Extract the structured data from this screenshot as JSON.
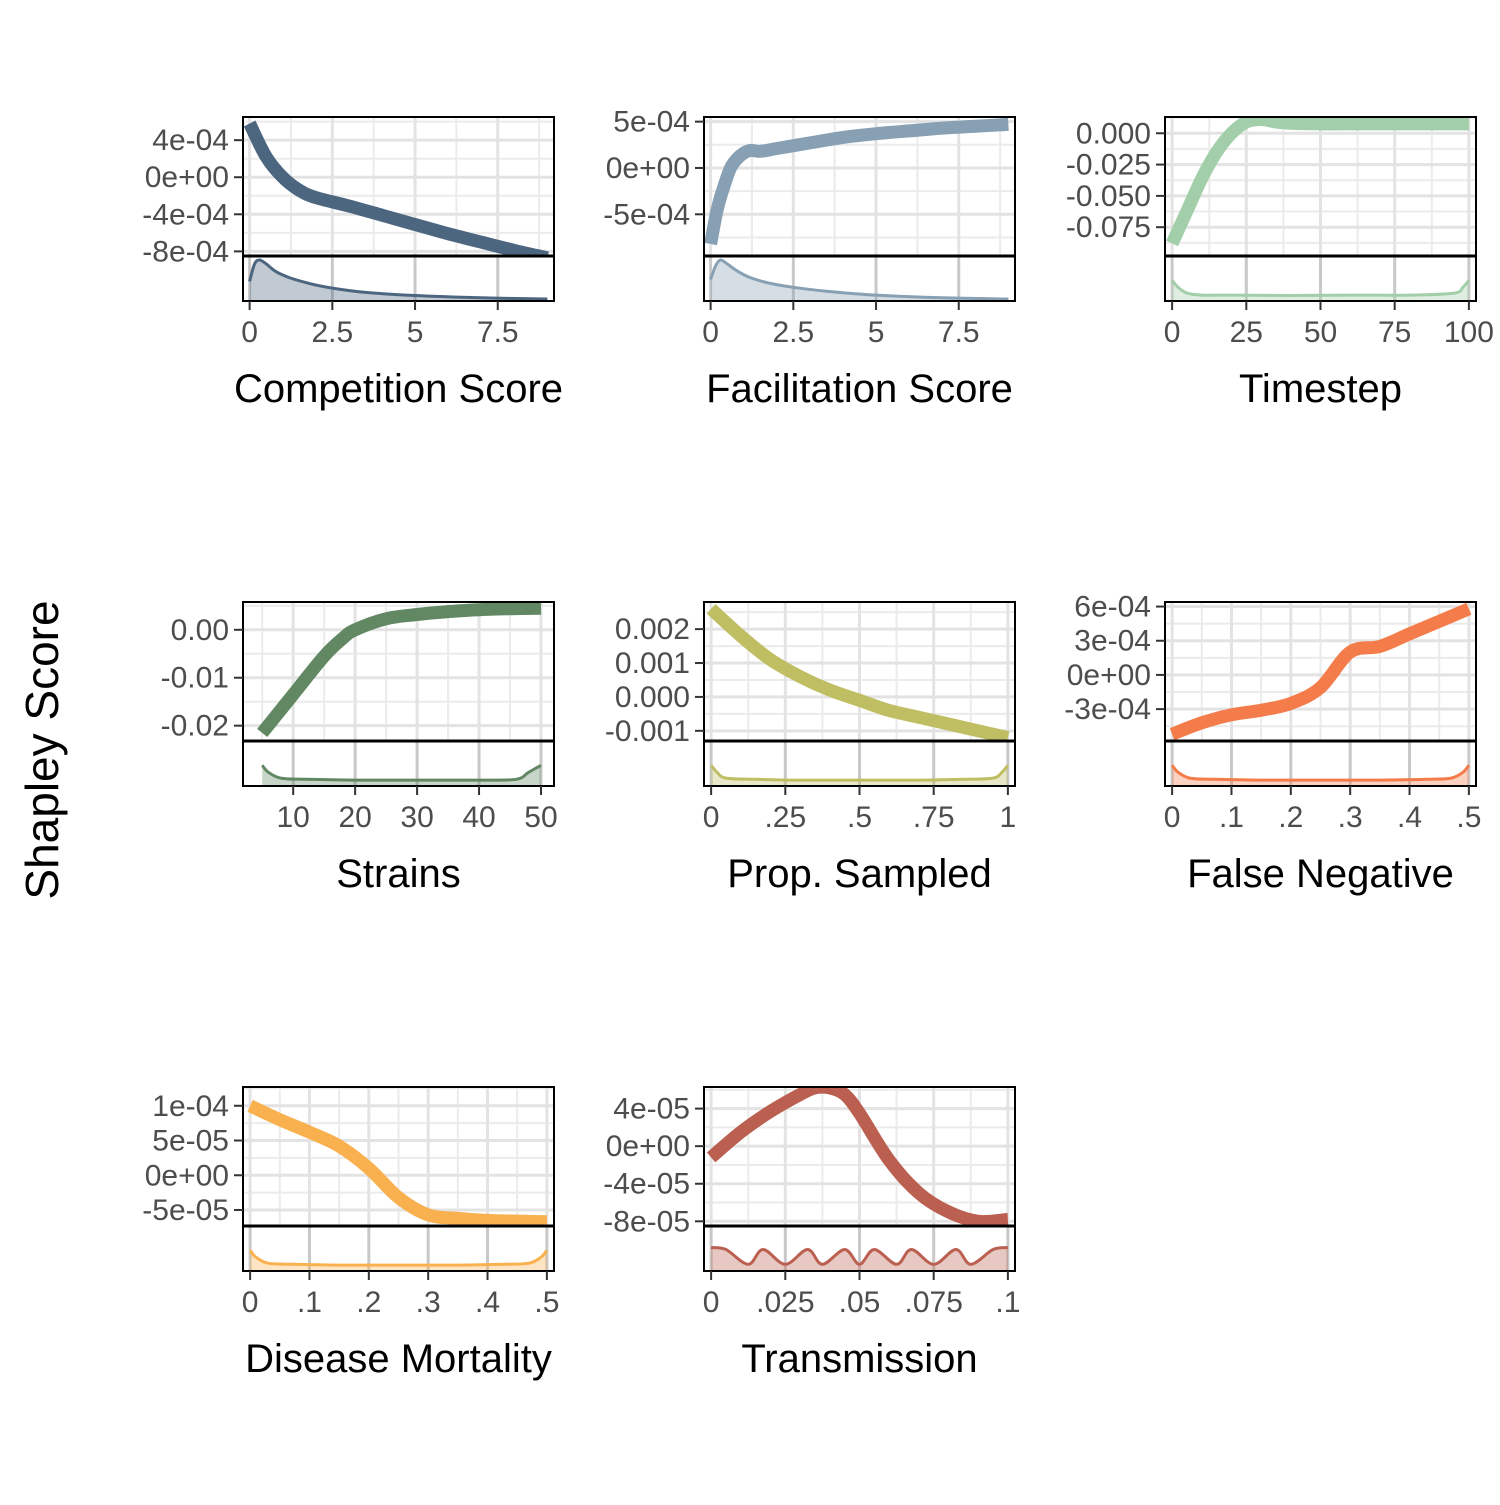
{
  "ylabel": "Shapley Score",
  "chart_data": [
    {
      "type": "line",
      "xlabel": "Competition Score",
      "xlim": [
        -0.2,
        9.2
      ],
      "xticks": [
        0,
        2.5,
        5,
        7.5
      ],
      "xtick_labels": [
        "0",
        "2.5",
        "5",
        "7.5"
      ],
      "ylim": [
        -0.00085,
        0.00065
      ],
      "yticks": [
        0.0004,
        0,
        -0.0004,
        -0.0008
      ],
      "ytick_labels": [
        "4e-04",
        "0e+00",
        "-4e-04",
        "-8e-04"
      ],
      "color": "#4d6680",
      "line_width": 13,
      "series": [
        {
          "x": [
            0,
            0.5,
            1,
            1.5,
            2,
            3,
            4,
            5,
            6,
            7,
            8,
            9
          ],
          "y": [
            0.00058,
            0.00022,
            0.0,
            -0.00014,
            -0.00022,
            -0.00031,
            -0.00041,
            -0.00051,
            -0.00061,
            -0.0007,
            -0.00079,
            -0.00087
          ]
        }
      ],
      "density": {
        "x": [
          0,
          0.15,
          0.3,
          0.5,
          0.8,
          1.2,
          1.8,
          2.5,
          3.5,
          5,
          7,
          9
        ],
        "y": [
          0.45,
          0.9,
          1.0,
          0.9,
          0.7,
          0.55,
          0.4,
          0.28,
          0.17,
          0.09,
          0.03,
          0.0
        ]
      }
    },
    {
      "type": "line",
      "xlabel": "Facilitation Score",
      "xlim": [
        -0.2,
        9.2
      ],
      "xticks": [
        0,
        2.5,
        5,
        7.5
      ],
      "xtick_labels": [
        "0",
        "2.5",
        "5",
        "7.5"
      ],
      "ylim": [
        -0.00095,
        0.00055
      ],
      "yticks": [
        0.0005,
        0,
        -0.0005
      ],
      "ytick_labels": [
        "5e-04",
        "0e+00",
        "-5e-04"
      ],
      "color": "#87a0b3",
      "line_width": 13,
      "series": [
        {
          "x": [
            0,
            0.2,
            0.4,
            0.6,
            0.8,
            1.0,
            1.2,
            1.5,
            2,
            3,
            4,
            5,
            6,
            7,
            8,
            9
          ],
          "y": [
            -0.00082,
            -0.00045,
            -0.0002,
            0.0,
            0.0001,
            0.00016,
            0.00019,
            0.00018,
            0.00021,
            0.00027,
            0.00033,
            0.00037,
            0.0004,
            0.00043,
            0.00045,
            0.00047
          ]
        }
      ],
      "density": {
        "x": [
          0,
          0.15,
          0.3,
          0.5,
          0.8,
          1.2,
          1.8,
          2.5,
          3.5,
          5,
          7,
          9
        ],
        "y": [
          0.5,
          0.85,
          1.0,
          0.9,
          0.72,
          0.55,
          0.4,
          0.3,
          0.2,
          0.1,
          0.03,
          0.0
        ]
      }
    },
    {
      "type": "line",
      "xlabel": "Timestep",
      "xlim": [
        -2.4,
        102.4
      ],
      "xticks": [
        0,
        25,
        50,
        75,
        100
      ],
      "xtick_labels": [
        "0",
        "25",
        "50",
        "75",
        "100"
      ],
      "ylim": [
        -0.098,
        0.013
      ],
      "yticks": [
        0.0,
        -0.025,
        -0.05,
        -0.075
      ],
      "ytick_labels": [
        "0.000",
        "-0.025",
        "-0.050",
        "-0.075"
      ],
      "color": "#a3ceaa",
      "line_width": 13,
      "series": [
        {
          "x": [
            0,
            5,
            10,
            15,
            20,
            25,
            30,
            35,
            40,
            50,
            60,
            70,
            80,
            90,
            100
          ],
          "y": [
            -0.088,
            -0.062,
            -0.036,
            -0.015,
            0.0,
            0.009,
            0.011,
            0.009,
            0.008,
            0.0075,
            0.0075,
            0.0075,
            0.0075,
            0.0075,
            0.0075
          ]
        }
      ],
      "density": {
        "x": [
          0,
          2,
          5,
          10,
          20,
          40,
          60,
          80,
          95,
          98,
          100
        ],
        "y": [
          0.48,
          0.3,
          0.15,
          0.1,
          0.1,
          0.09,
          0.1,
          0.1,
          0.15,
          0.3,
          0.48
        ]
      }
    },
    {
      "type": "line",
      "xlabel": "Strains",
      "xlim": [
        1.9,
        52.1
      ],
      "xticks": [
        10,
        20,
        30,
        40,
        50
      ],
      "xtick_labels": [
        "10",
        "20",
        "30",
        "40",
        "50"
      ],
      "ylim": [
        -0.0232,
        0.0058
      ],
      "yticks": [
        0.0,
        -0.01,
        -0.02
      ],
      "ytick_labels": [
        "0.00",
        "-0.01",
        "-0.02"
      ],
      "color": "#618863",
      "line_width": 13,
      "series": [
        {
          "x": [
            5,
            10,
            15,
            18,
            20,
            25,
            30,
            35,
            40,
            45,
            50
          ],
          "y": [
            -0.0215,
            -0.0135,
            -0.0055,
            -0.0018,
            0.0,
            0.0023,
            0.0032,
            0.0038,
            0.0042,
            0.0044,
            0.0045
          ]
        }
      ],
      "density": {
        "x": [
          5,
          6,
          8,
          12,
          20,
          30,
          40,
          46,
          48,
          50
        ],
        "y": [
          0.48,
          0.3,
          0.15,
          0.12,
          0.1,
          0.1,
          0.1,
          0.12,
          0.3,
          0.48
        ]
      }
    },
    {
      "type": "line",
      "xlabel": "Prop. Sampled",
      "xlim": [
        -0.024,
        1.024
      ],
      "xticks": [
        0,
        0.25,
        0.5,
        0.75,
        1
      ],
      "xtick_labels": [
        "0",
        ".25",
        ".5",
        ".75",
        "1"
      ],
      "ylim": [
        -0.0013,
        0.0028
      ],
      "yticks": [
        0.002,
        0.001,
        0.0,
        -0.001
      ],
      "ytick_labels": [
        "0.002",
        "0.001",
        "0.000",
        "-0.001"
      ],
      "color": "#c0be63",
      "line_width": 13,
      "series": [
        {
          "x": [
            0,
            0.1,
            0.2,
            0.3,
            0.4,
            0.5,
            0.6,
            0.7,
            0.8,
            0.9,
            1.0
          ],
          "y": [
            0.0026,
            0.0018,
            0.0011,
            0.0006,
            0.0002,
            -0.0001,
            -0.0004,
            -0.0006,
            -0.0008,
            -0.001,
            -0.0012
          ]
        }
      ],
      "density": {
        "x": [
          0,
          0.02,
          0.05,
          0.15,
          0.3,
          0.5,
          0.7,
          0.85,
          0.95,
          0.98,
          1.0
        ],
        "y": [
          0.48,
          0.3,
          0.15,
          0.12,
          0.1,
          0.1,
          0.1,
          0.12,
          0.15,
          0.3,
          0.48
        ]
      }
    },
    {
      "type": "line",
      "xlabel": "False Negative",
      "xlim": [
        -0.012,
        0.512
      ],
      "xticks": [
        0,
        0.1,
        0.2,
        0.3,
        0.4,
        0.5
      ],
      "xtick_labels": [
        "0",
        ".1",
        ".2",
        ".3",
        ".4",
        ".5"
      ],
      "ylim": [
        -0.00058,
        0.00064
      ],
      "yticks": [
        0.0006,
        0.0003,
        0.0,
        -0.0003
      ],
      "ytick_labels": [
        "6e-04",
        "3e-04",
        "0e+00",
        "-3e-04"
      ],
      "color": "#f47c4a",
      "line_width": 13,
      "series": [
        {
          "x": [
            0,
            0.05,
            0.1,
            0.15,
            0.2,
            0.25,
            0.3,
            0.35,
            0.4,
            0.45,
            0.5
          ],
          "y": [
            -0.00052,
            -0.00042,
            -0.00035,
            -0.00031,
            -0.00025,
            -0.00011,
            0.0002,
            0.00025,
            0.00036,
            0.00047,
            0.00058
          ]
        }
      ],
      "density": {
        "x": [
          0,
          0.01,
          0.03,
          0.07,
          0.15,
          0.25,
          0.35,
          0.43,
          0.47,
          0.49,
          0.5
        ],
        "y": [
          0.48,
          0.3,
          0.15,
          0.12,
          0.1,
          0.1,
          0.1,
          0.12,
          0.15,
          0.3,
          0.48
        ]
      }
    },
    {
      "type": "line",
      "xlabel": "Disease Mortality",
      "xlim": [
        -0.012,
        0.512
      ],
      "xticks": [
        0,
        0.1,
        0.2,
        0.3,
        0.4,
        0.5
      ],
      "xtick_labels": [
        "0",
        ".1",
        ".2",
        ".3",
        ".4",
        ".5"
      ],
      "ylim": [
        -7.3e-05,
        0.000127
      ],
      "yticks": [
        0.0001,
        5e-05,
        0.0,
        -5e-05
      ],
      "ytick_labels": [
        "1e-04",
        "5e-05",
        "0e+00",
        "-5e-05"
      ],
      "color": "#f9b14f",
      "line_width": 13,
      "series": [
        {
          "x": [
            0,
            0.05,
            0.1,
            0.15,
            0.2,
            0.25,
            0.3,
            0.35,
            0.4,
            0.45,
            0.5
          ],
          "y": [
            0.0001,
            8e-05,
            6.2e-05,
            4.2e-05,
            1e-05,
            -3.2e-05,
            -5.7e-05,
            -6.2e-05,
            -6.5e-05,
            -6.6e-05,
            -6.7e-05
          ]
        }
      ],
      "density": {
        "x": [
          0,
          0.01,
          0.03,
          0.07,
          0.15,
          0.25,
          0.35,
          0.43,
          0.47,
          0.49,
          0.5
        ],
        "y": [
          0.48,
          0.3,
          0.15,
          0.12,
          0.1,
          0.1,
          0.1,
          0.12,
          0.15,
          0.3,
          0.48
        ]
      }
    },
    {
      "type": "line",
      "xlabel": "Transmission",
      "xlim": [
        -0.0024,
        0.1024
      ],
      "xticks": [
        0,
        0.025,
        0.05,
        0.075,
        0.1
      ],
      "xtick_labels": [
        "0",
        ".025",
        ".05",
        ".075",
        ".1"
      ],
      "ylim": [
        -8.5e-05,
        6.3e-05
      ],
      "yticks": [
        4e-05,
        0.0,
        -4e-05,
        -8e-05
      ],
      "ytick_labels": [
        "4e-05",
        "0e+00",
        "-4e-05",
        "-8e-05"
      ],
      "color": "#bb6050",
      "line_width": 13,
      "series": [
        {
          "x": [
            0,
            0.01,
            0.02,
            0.03,
            0.035,
            0.04,
            0.045,
            0.05,
            0.06,
            0.07,
            0.08,
            0.09,
            0.1
          ],
          "y": [
            -1.2e-05,
            1.5e-05,
            3.7e-05,
            5.5e-05,
            6.2e-05,
            6.2e-05,
            5.5e-05,
            3.5e-05,
            -1.5e-05,
            -5e-05,
            -7e-05,
            -8e-05,
            -7.8e-05
          ]
        }
      ],
      "density": {
        "x": [
          0,
          0.005,
          0.0125,
          0.0175,
          0.025,
          0.0325,
          0.0375,
          0.045,
          0.05,
          0.055,
          0.0625,
          0.0675,
          0.075,
          0.0825,
          0.0875,
          0.095,
          0.1
        ],
        "y": [
          0.55,
          0.5,
          0.12,
          0.5,
          0.12,
          0.5,
          0.12,
          0.5,
          0.12,
          0.5,
          0.12,
          0.5,
          0.12,
          0.5,
          0.12,
          0.5,
          0.55
        ]
      }
    }
  ]
}
